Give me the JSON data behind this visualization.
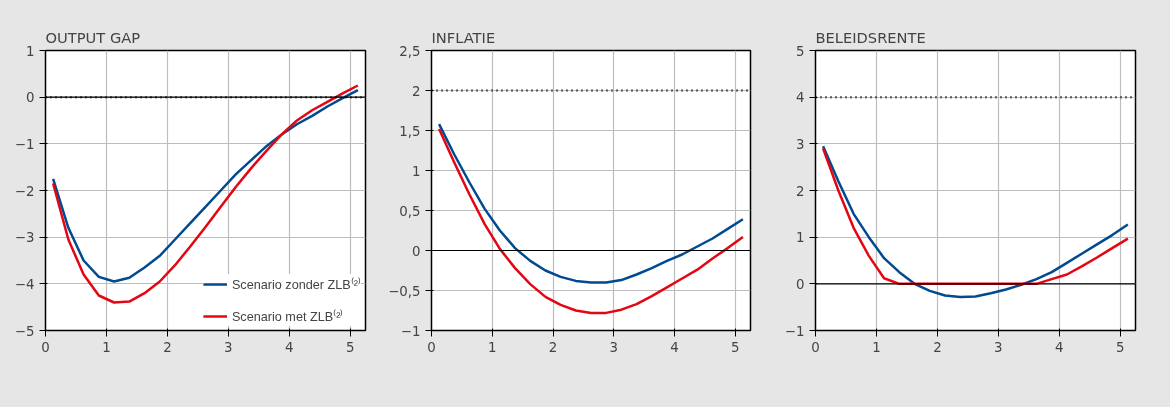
{
  "chart_data": [
    {
      "type": "line",
      "title": "OUTPUT GAP",
      "x": [
        0.125,
        0.375,
        0.625,
        0.875,
        1.125,
        1.375,
        1.625,
        1.875,
        2.125,
        2.375,
        2.625,
        2.875,
        3.125,
        3.375,
        3.625,
        3.875,
        4.125,
        4.375,
        4.625,
        4.875,
        5.125
      ],
      "series": [
        {
          "name": "Scenario zonder ZLB⁽²⁾",
          "color": "#004a8f",
          "values": [
            -1.75,
            -2.8,
            -3.5,
            -3.85,
            -3.95,
            -3.87,
            -3.65,
            -3.4,
            -3.05,
            -2.7,
            -2.35,
            -2.0,
            -1.65,
            -1.35,
            -1.05,
            -0.8,
            -0.58,
            -0.4,
            -0.2,
            -0.02,
            0.15
          ]
        },
        {
          "name": "Scenario met ZLB⁽²⁾",
          "color": "#e30613",
          "values": [
            -1.85,
            -3.05,
            -3.8,
            -4.25,
            -4.4,
            -4.38,
            -4.2,
            -3.95,
            -3.6,
            -3.2,
            -2.78,
            -2.35,
            -1.92,
            -1.52,
            -1.15,
            -0.8,
            -0.5,
            -0.28,
            -0.1,
            0.08,
            0.25
          ]
        }
      ],
      "xlim": [
        0,
        5.25
      ],
      "xticks": [
        0,
        1,
        2,
        3,
        4,
        5
      ],
      "ylim": [
        -5,
        1
      ],
      "yticks": [
        {
          "value": -5,
          "label": "−5"
        },
        {
          "value": -4,
          "label": "−4"
        },
        {
          "value": -3,
          "label": "−3"
        },
        {
          "value": -2,
          "label": "−2"
        },
        {
          "value": -1,
          "label": "−1"
        },
        0,
        1
      ],
      "ref_lines": [
        {
          "axis": "y",
          "value": 0,
          "color": "#000000",
          "line_style": "solid"
        },
        {
          "axis": "y",
          "value": 0,
          "color": "#000000",
          "line_style": "dotted"
        }
      ],
      "grid": true,
      "legend": "bottom right",
      "marker": "none",
      "line_style": "solid"
    },
    {
      "type": "line",
      "title": "INFLATIE",
      "x": [
        0.125,
        0.375,
        0.625,
        0.875,
        1.125,
        1.375,
        1.625,
        1.875,
        2.125,
        2.375,
        2.625,
        2.875,
        3.125,
        3.375,
        3.625,
        3.875,
        4.125,
        4.375,
        4.625,
        4.875,
        5.125
      ],
      "series": [
        {
          "color": "#004a8f",
          "values": [
            1.58,
            1.2,
            0.85,
            0.52,
            0.25,
            0.03,
            -0.13,
            -0.25,
            -0.33,
            -0.38,
            -0.4,
            -0.4,
            -0.37,
            -0.3,
            -0.22,
            -0.13,
            -0.05,
            0.05,
            0.15,
            0.27,
            0.39
          ]
        },
        {
          "color": "#e30613",
          "values": [
            1.52,
            1.1,
            0.7,
            0.33,
            0.02,
            -0.22,
            -0.42,
            -0.58,
            -0.68,
            -0.75,
            -0.78,
            -0.78,
            -0.74,
            -0.67,
            -0.57,
            -0.46,
            -0.35,
            -0.24,
            -0.1,
            0.03,
            0.17
          ]
        }
      ],
      "xlim": [
        0,
        5.25
      ],
      "xticks": [
        0,
        1,
        2,
        3,
        4,
        5
      ],
      "ylim": [
        -1,
        2.5
      ],
      "yticks": [
        {
          "value": -1,
          "label": "−1"
        },
        {
          "value": -0.5,
          "label": "−0,5"
        },
        0,
        {
          "value": 0.5,
          "label": "0,5"
        },
        1,
        {
          "value": 1.5,
          "label": "1,5"
        },
        2,
        {
          "value": 2.5,
          "label": "2,5"
        }
      ],
      "ref_lines": [
        {
          "axis": "y",
          "value": 0,
          "color": "#000000",
          "line_style": "solid"
        },
        {
          "axis": "y",
          "value": 2,
          "color": "#000000",
          "line_style": "dotted"
        }
      ],
      "grid": true,
      "legend": false,
      "marker": "none",
      "line_style": "solid"
    },
    {
      "type": "line",
      "title": "BELEIDSRENTE",
      "x": [
        0.125,
        0.375,
        0.625,
        0.875,
        1.125,
        1.375,
        1.625,
        1.875,
        2.125,
        2.375,
        2.625,
        2.875,
        3.125,
        3.375,
        3.625,
        3.875,
        4.125,
        4.375,
        4.625,
        4.875,
        5.125
      ],
      "series": [
        {
          "color": "#004a8f",
          "values": [
            2.95,
            2.2,
            1.5,
            1.0,
            0.55,
            0.25,
            0.0,
            -0.15,
            -0.25,
            -0.28,
            -0.27,
            -0.2,
            -0.12,
            -0.02,
            0.1,
            0.25,
            0.45,
            0.65,
            0.85,
            1.05,
            1.27
          ]
        },
        {
          "color": "#e30613",
          "values": [
            2.9,
            2.0,
            1.2,
            0.6,
            0.12,
            0.0,
            0.0,
            0.0,
            0.0,
            0.0,
            0.0,
            0.0,
            0.0,
            0.0,
            0.0,
            0.1,
            0.2,
            0.38,
            0.57,
            0.77,
            0.97
          ]
        }
      ],
      "xlim": [
        0,
        5.25
      ],
      "xticks": [
        0,
        1,
        2,
        3,
        4,
        5
      ],
      "ylim": [
        -1,
        5
      ],
      "yticks": [
        {
          "value": -1,
          "label": "−1"
        },
        0,
        1,
        2,
        3,
        4,
        5
      ],
      "ref_lines": [
        {
          "axis": "y",
          "value": 0,
          "color": "#000000",
          "line_style": "solid"
        },
        {
          "axis": "y",
          "value": 4,
          "color": "#000000",
          "line_style": "dotted"
        }
      ],
      "grid": true,
      "legend": false,
      "marker": "none",
      "line_style": "solid"
    }
  ]
}
